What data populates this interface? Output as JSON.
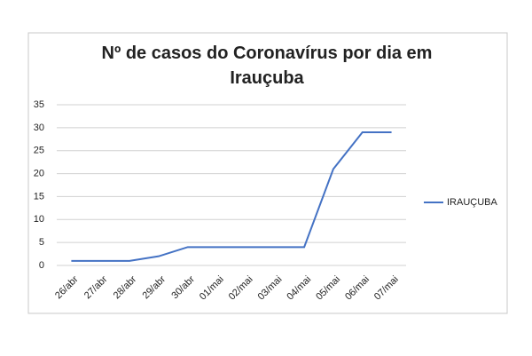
{
  "chart_data": {
    "type": "line",
    "title": "Nº de casos do Coronavírus por dia em Irauçuba",
    "categories": [
      "26/abr",
      "27/abr",
      "28/abr",
      "29/abr",
      "30/abr",
      "01/mai",
      "02/mai",
      "03/mai",
      "04/mai",
      "05/mai",
      "06/mai",
      "07/mai"
    ],
    "series": [
      {
        "name": "IRAUÇUBA",
        "color": "#4472c4",
        "values": [
          1,
          1,
          1,
          2,
          4,
          4,
          4,
          4,
          4,
          21,
          29,
          29
        ]
      }
    ],
    "ylim": [
      0,
      35
    ],
    "yticks": [
      0,
      5,
      10,
      15,
      20,
      25,
      30,
      35
    ],
    "grid": true,
    "legend": "right"
  }
}
